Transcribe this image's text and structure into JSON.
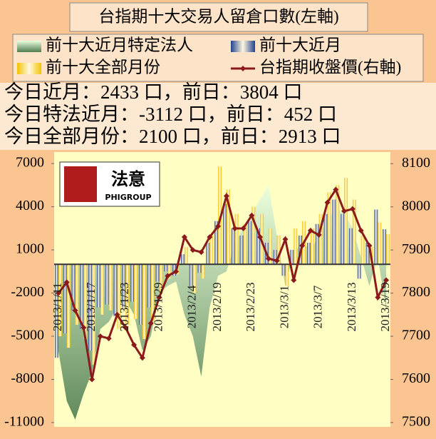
{
  "summary": [
    "今日近月：2433 口，前日：3804 口",
    "今日特法近月：-3112 口，前日：452 口",
    "今日全部月份：2100 口，前日：2913 口"
  ],
  "logo": {
    "text": "法意",
    "subtext": "PHIGROUP"
  },
  "chart_data": {
    "type": "bar",
    "title": "台指期十大交易人留倉口數(左軸)",
    "categories": [
      "2013/1/11",
      null,
      null,
      null,
      "2013/1/17",
      null,
      null,
      null,
      "2013/1/23",
      null,
      null,
      null,
      "2013/1/29",
      null,
      null,
      null,
      "2013/2/4",
      null,
      null,
      "2013/2/19",
      null,
      null,
      null,
      "2013/2/23",
      null,
      null,
      null,
      "2013/3/1",
      null,
      null,
      null,
      "2013/3/7",
      null,
      null,
      null,
      "2013/3/13",
      null,
      null,
      null,
      "2013/3/19"
    ],
    "series": [
      {
        "name": "前十大近月特定法人",
        "type": "area",
        "color": "#4f7d4f",
        "values": [
          -6000,
          -9500,
          -10800,
          -9000,
          -7500,
          -4500,
          -4000,
          -3000,
          -2500,
          -3500,
          -6000,
          -5000,
          -2000,
          -1500,
          -1200,
          -3500,
          -5000,
          -7800,
          -3000,
          -800,
          -500,
          1500,
          2500,
          3500,
          4500,
          5500,
          2000,
          -1500,
          800,
          1500,
          1000,
          2000,
          3000,
          4000,
          3500,
          2500,
          500,
          -1500,
          452,
          -3112
        ]
      },
      {
        "name": "前十大近月",
        "type": "bar",
        "color": "#23428f",
        "values": [
          -6500,
          -4800,
          -3200,
          -4500,
          -6000,
          -3000,
          -2800,
          -3600,
          -3000,
          -2600,
          -4200,
          -3000,
          -1200,
          -500,
          -800,
          700,
          -1500,
          -600,
          1500,
          3000,
          4200,
          2500,
          2000,
          3000,
          2500,
          1500,
          1000,
          -800,
          1000,
          2000,
          1500,
          2800,
          3500,
          4500,
          3500,
          2500,
          -1000,
          1500,
          3804,
          2433
        ]
      },
      {
        "name": "前十大全部月份",
        "type": "bar",
        "color": "#f2c200",
        "values": [
          -5000,
          -5800,
          -4200,
          -5200,
          -7000,
          -3500,
          -3200,
          -4500,
          -4200,
          -3800,
          -5200,
          -4000,
          -2000,
          -1000,
          -700,
          1200,
          -2000,
          -1000,
          2000,
          6800,
          5200,
          3500,
          2800,
          4000,
          3500,
          2500,
          2000,
          -1500,
          2500,
          3000,
          2500,
          3500,
          5000,
          5500,
          6000,
          4500,
          2000,
          1200,
          2913,
          2100
        ]
      },
      {
        "name": "台指期收盤價(右軸)",
        "type": "line",
        "axis": "y2",
        "color": "#8b1a1a",
        "values": [
          7800,
          7825,
          7760,
          7720,
          7600,
          7700,
          7695,
          7750,
          7720,
          7680,
          7650,
          7730,
          7790,
          7840,
          7850,
          7930,
          7900,
          7895,
          7930,
          7955,
          8025,
          7950,
          7950,
          7980,
          7930,
          7880,
          7875,
          7925,
          7830,
          7910,
          7945,
          7935,
          8010,
          8040,
          7990,
          7995,
          7945,
          7910,
          7790,
          7830
        ]
      }
    ],
    "ylim": [
      -11300,
      7800
    ],
    "yticks": [
      7000,
      4000,
      1000,
      -2000,
      -5000,
      -8000,
      -11000
    ],
    "y2lim": [
      7490,
      8127
    ],
    "y2ticks": [
      8100,
      8000,
      7900,
      7800,
      7700,
      7600,
      7500
    ]
  }
}
